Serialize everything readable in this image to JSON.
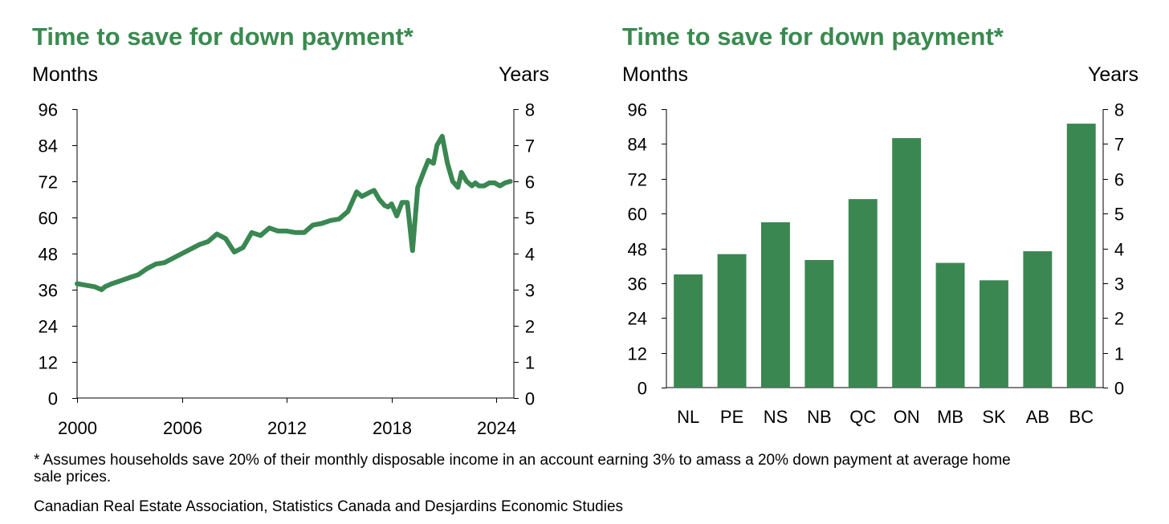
{
  "colors": {
    "title": "#3a8a4f",
    "series": "#3a8752"
  },
  "footnote": "* Assumes households save 20% of their monthly disposable income in an account earning 3% to amass a 20% down payment at average home sale prices.",
  "source": "Canadian Real Estate Association, Statistics Canada and Desjardins Economic Studies",
  "chart_data": [
    {
      "type": "line",
      "title": "Time to save for down payment*",
      "ylabel": "Months",
      "y2label": "Years",
      "ylim": [
        0,
        96
      ],
      "y2lim": [
        0,
        8
      ],
      "yticks": [
        "0",
        "12",
        "24",
        "36",
        "48",
        "60",
        "72",
        "84",
        "96"
      ],
      "y2ticks": [
        "0",
        "1",
        "2",
        "3",
        "4",
        "5",
        "6",
        "7",
        "8"
      ],
      "xlim": [
        2000,
        2025
      ],
      "xticks": [
        "2000",
        "2006",
        "2012",
        "2018",
        "2024"
      ],
      "grid": false,
      "series": [
        {
          "x": [
            2000.0,
            2000.5,
            2001.0,
            2001.4,
            2001.6,
            2002.0,
            2002.5,
            2003.0,
            2003.5,
            2004.0,
            2004.5,
            2005.0,
            2005.5,
            2006.0,
            2006.5,
            2007.0,
            2007.5,
            2008.0,
            2008.5,
            2009.0,
            2009.5,
            2010.0,
            2010.5,
            2011.0,
            2011.5,
            2012.0,
            2012.5,
            2013.0,
            2013.5,
            2014.0,
            2014.5,
            2015.0,
            2015.5,
            2016.0,
            2016.3,
            2016.8,
            2017.0,
            2017.3,
            2017.6,
            2017.8,
            2018.0,
            2018.3,
            2018.6,
            2018.9,
            2019.2,
            2019.5,
            2019.8,
            2020.1,
            2020.4,
            2020.6,
            2020.9,
            2021.2,
            2021.5,
            2021.8,
            2022.0,
            2022.3,
            2022.6,
            2022.8,
            2023.0,
            2023.3,
            2023.6,
            2023.9,
            2024.2,
            2024.5,
            2024.8
          ],
          "y": [
            38,
            37.5,
            37,
            36,
            37,
            38,
            39,
            40,
            41,
            43,
            44.5,
            45,
            46.5,
            48,
            49.5,
            51,
            52,
            54.5,
            53,
            48.5,
            50,
            55,
            54,
            56.5,
            55.5,
            55.5,
            55,
            55,
            57.5,
            58,
            59,
            59.5,
            62,
            68.5,
            67,
            68.5,
            69,
            66,
            64,
            63.5,
            64.5,
            60.5,
            65,
            65,
            49,
            70,
            74.5,
            79,
            78,
            84,
            87,
            78,
            72,
            70,
            75,
            72,
            70.5,
            71.5,
            70.5,
            70.5,
            71.5,
            71.5,
            70.5,
            71.5,
            72
          ]
        }
      ]
    },
    {
      "type": "bar",
      "title": "Time to save for down payment*",
      "ylabel": "Months",
      "y2label": "Years",
      "ylim": [
        0,
        96
      ],
      "y2lim": [
        0,
        8
      ],
      "yticks": [
        "0",
        "12",
        "24",
        "36",
        "48",
        "60",
        "72",
        "84",
        "96"
      ],
      "y2ticks": [
        "0",
        "1",
        "2",
        "3",
        "4",
        "5",
        "6",
        "7",
        "8"
      ],
      "grid": false,
      "categories": [
        "NL",
        "PE",
        "NS",
        "NB",
        "QC",
        "ON",
        "MB",
        "SK",
        "AB",
        "BC"
      ],
      "values": [
        39,
        46,
        57,
        44,
        65,
        86,
        43,
        37,
        47,
        91
      ]
    }
  ]
}
